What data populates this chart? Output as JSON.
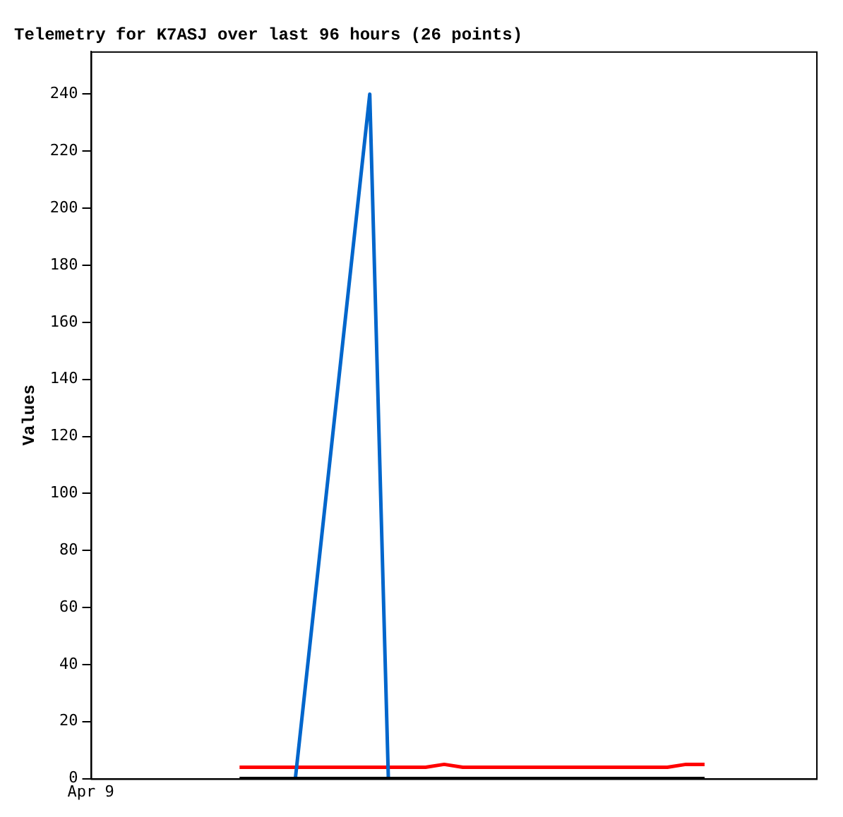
{
  "chart_data": {
    "type": "line",
    "title": "Telemetry for K7ASJ over last 96 hours (26 points)",
    "ylabel": "Values",
    "categories": [
      "Apr 9",
      null,
      null,
      null,
      null,
      null,
      null,
      null,
      null,
      null,
      null,
      null,
      null,
      null,
      null,
      null,
      null,
      null,
      null,
      null,
      null,
      null,
      null,
      null,
      null,
      null,
      null,
      null,
      null,
      null,
      null,
      null,
      null,
      null,
      null,
      null,
      null,
      null,
      null,
      null
    ],
    "ylim": [
      0,
      255
    ],
    "yticks": [
      0,
      20,
      40,
      60,
      80,
      100,
      120,
      140,
      160,
      180,
      200,
      220,
      240
    ],
    "grid": false,
    "legend": false,
    "marker": "none",
    "line_style": "solid",
    "series": [
      {
        "color": "#000000",
        "values": [
          null,
          null,
          null,
          null,
          null,
          null,
          null,
          null,
          0,
          0,
          0,
          0,
          0,
          0,
          0,
          0,
          0,
          0,
          0,
          0,
          0,
          0,
          0,
          0,
          0,
          0,
          0,
          0,
          0,
          0,
          0,
          0,
          0,
          0,
          null,
          null,
          null,
          null,
          null,
          null
        ]
      },
      {
        "color": "#0066cc",
        "values": [
          null,
          null,
          null,
          null,
          null,
          null,
          null,
          null,
          null,
          null,
          null,
          0,
          60,
          120,
          180,
          240,
          0,
          null,
          null,
          null,
          null,
          null,
          null,
          null,
          null,
          null,
          null,
          null,
          null,
          null,
          null,
          null,
          null,
          null,
          null,
          null,
          null,
          null,
          null,
          null
        ]
      },
      {
        "color": "#ff0000",
        "values": [
          null,
          null,
          null,
          null,
          null,
          null,
          null,
          null,
          4,
          4,
          4,
          4,
          4,
          4,
          4,
          4,
          4,
          4,
          4,
          5,
          4,
          4,
          4,
          4,
          4,
          4,
          4,
          4,
          4,
          4,
          4,
          4,
          5,
          5,
          null,
          null,
          null,
          null,
          null,
          null
        ]
      }
    ]
  }
}
